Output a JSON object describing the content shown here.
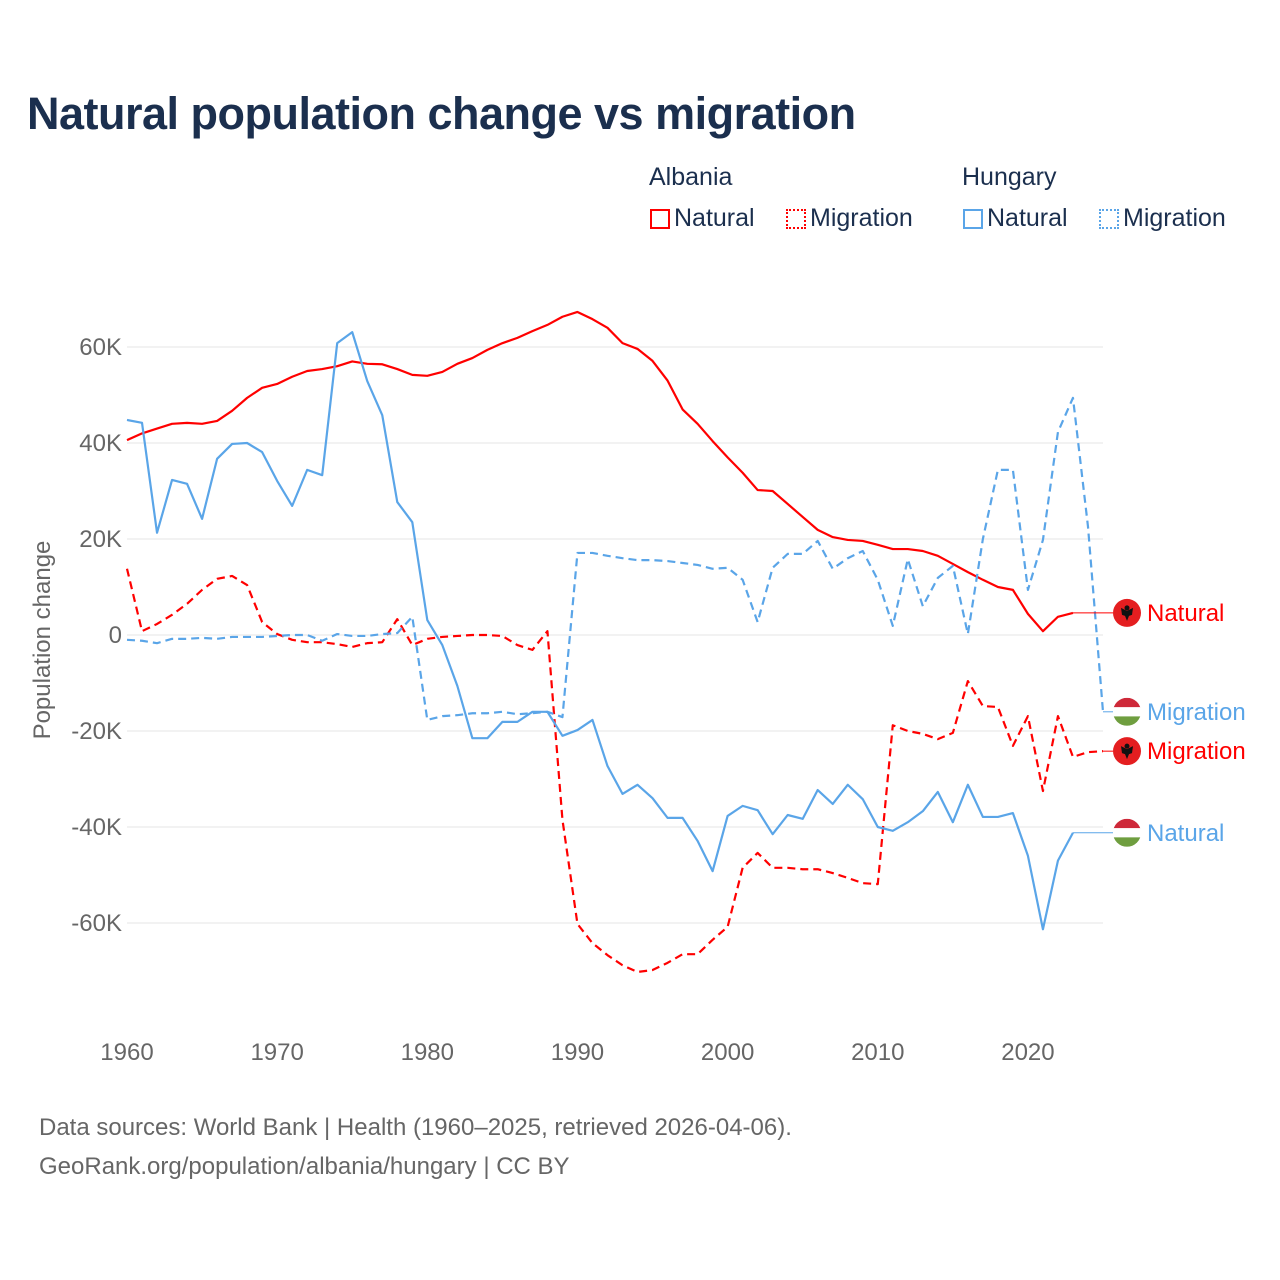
{
  "title": "Natural population change vs migration",
  "legend": {
    "groups": [
      {
        "country": "Albania",
        "items": [
          {
            "label": "Natural",
            "style": "solid"
          },
          {
            "label": "Migration",
            "style": "dotted"
          }
        ],
        "color": "#ff0000"
      },
      {
        "country": "Hungary",
        "items": [
          {
            "label": "Natural",
            "style": "solid"
          },
          {
            "label": "Migration",
            "style": "dotted"
          }
        ],
        "color": "#5aa5e8"
      }
    ]
  },
  "footer": {
    "line1": "Data sources: World Bank | Health (1960–2025, retrieved 2026-04-06).",
    "line2": "GeoRank.org/population/albania/hungary | CC BY"
  },
  "chart_data": {
    "type": "line",
    "title": "Natural population change vs migration",
    "xlabel": "",
    "ylabel": "Population change",
    "xlim": [
      1960,
      2025
    ],
    "ylim": [
      -80000,
      70000
    ],
    "xticks": [
      1960,
      1970,
      1980,
      1990,
      2000,
      2010,
      2020
    ],
    "xtick_labels": [
      "1960",
      "1970",
      "1980",
      "1990",
      "2000",
      "2010",
      "2020"
    ],
    "yticks": [
      60000,
      40000,
      20000,
      0,
      -20000,
      -40000,
      -60000
    ],
    "ytick_labels": [
      "60K",
      "40K",
      "20K",
      "0",
      "-20K",
      "-40K",
      "-60K"
    ],
    "grid": true,
    "series": [
      {
        "name": "Albania Natural",
        "label": "Natural",
        "country": "Albania",
        "color": "#ff0000",
        "dash": false,
        "start": 1960,
        "values_k": [
          40.6,
          42,
          43,
          44,
          44.2,
          44,
          44.6,
          46.7,
          49.4,
          51.5,
          52.3,
          53.8,
          55,
          55.4,
          56,
          57,
          56.5,
          56.4,
          55.4,
          54.2,
          54,
          54.8,
          56.5,
          57.7,
          59.4,
          60.8,
          61.9,
          63.3,
          64.6,
          66.3,
          67.3,
          65.8,
          64,
          60.8,
          59.6,
          57.1,
          53,
          47,
          44,
          40.4,
          37,
          33.8,
          30.2,
          30,
          27.3,
          24.6,
          21.9,
          20.4,
          19.8,
          19.6,
          18.8,
          17.9,
          17.9,
          17.5,
          16.5,
          14.8,
          13.1,
          11.5,
          10,
          9.4,
          4.4,
          0.8,
          3.8,
          4.6
        ]
      },
      {
        "name": "Albania Migration",
        "label": "Migration",
        "country": "Albania",
        "color": "#ff0000",
        "dash": true,
        "start": 1960,
        "values_k": [
          13.8,
          0.8,
          2.3,
          4.2,
          6.5,
          9.4,
          11.7,
          12.3,
          10.4,
          2.7,
          0.2,
          -1,
          -1.5,
          -1.5,
          -1.9,
          -2.5,
          -1.7,
          -1.5,
          3.3,
          -2.1,
          -0.8,
          -0.4,
          -0.2,
          0,
          0,
          -0.2,
          -2.1,
          -3.1,
          0.8,
          -38.5,
          -60.2,
          -64.2,
          -66.7,
          -68.8,
          -70.2,
          -69.8,
          -68.3,
          -66.5,
          -66.5,
          -63.5,
          -60.8,
          -48.5,
          -45.4,
          -48.5,
          -48.5,
          -48.8,
          -48.8,
          -49.6,
          -50.6,
          -51.7,
          -51.9,
          -18.8,
          -20,
          -20.6,
          -21.7,
          -20.4,
          -9.6,
          -14.8,
          -15,
          -23.1,
          -16.9,
          -32.5,
          -16.9,
          -25.4,
          -24.4,
          -24.2
        ]
      },
      {
        "name": "Hungary Natural",
        "label": "Natural",
        "country": "Hungary",
        "color": "#5aa5e8",
        "dash": false,
        "start": 1960,
        "values_k": [
          44.8,
          44.2,
          21.3,
          32.3,
          31.5,
          24.2,
          36.7,
          39.8,
          40,
          38.1,
          32.1,
          26.9,
          34.4,
          33.3,
          60.8,
          63.1,
          52.9,
          45.8,
          27.7,
          23.5,
          3.1,
          -2.1,
          -10.6,
          -21.5,
          -21.5,
          -18.1,
          -18.1,
          -16,
          -16,
          -21,
          -19.8,
          -17.7,
          -27.3,
          -33.1,
          -31.2,
          -34,
          -38.1,
          -38.1,
          -42.9,
          -49.2,
          -37.7,
          -35.6,
          -36.5,
          -41.5,
          -37.5,
          -38.3,
          -32.3,
          -35.2,
          -31.2,
          -34.2,
          -40,
          -40.8,
          -39,
          -36.7,
          -32.7,
          -39,
          -31.2,
          -37.9,
          -37.9,
          -37.1,
          -46,
          -61.3,
          -47,
          -41.2
        ]
      },
      {
        "name": "Hungary Migration",
        "label": "Migration",
        "country": "Hungary",
        "color": "#5aa5e8",
        "dash": true,
        "start": 1960,
        "values_k": [
          -1,
          -1.2,
          -1.7,
          -0.8,
          -0.8,
          -0.6,
          -0.8,
          -0.4,
          -0.4,
          -0.4,
          -0.2,
          0,
          0,
          -1.2,
          0.2,
          -0.2,
          -0.2,
          0.2,
          0.4,
          3.8,
          -17.7,
          -16.9,
          -16.7,
          -16.3,
          -16.3,
          -16,
          -16.5,
          -16.3,
          -16,
          -17.1,
          17.1,
          17.1,
          16.5,
          16,
          15.6,
          15.6,
          15.4,
          15,
          14.6,
          13.8,
          14,
          11.5,
          2.7,
          14,
          16.9,
          16.9,
          19.6,
          13.8,
          16,
          17.5,
          11.5,
          1.9,
          15.8,
          6,
          11.9,
          14.4,
          0.2,
          20,
          34.4,
          34.4,
          9.4,
          19.8,
          42.3,
          49.4,
          22.6,
          -16
        ]
      }
    ],
    "end_labels": [
      {
        "series": "Albania Natural",
        "text": "Natural",
        "flag": "albania-flag"
      },
      {
        "series": "Hungary Migration",
        "text": "Migration",
        "flag": "hungary-flag"
      },
      {
        "series": "Albania Migration",
        "text": "Migration",
        "flag": "albania-flag"
      },
      {
        "series": "Hungary Natural",
        "text": "Natural",
        "flag": "hungary-flag"
      }
    ]
  }
}
